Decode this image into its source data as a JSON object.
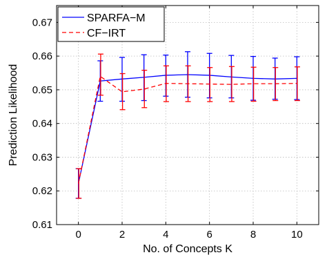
{
  "chart_data": {
    "type": "line",
    "title": "",
    "xlabel": "No. of Concepts K",
    "ylabel": "Prediction Likelihood",
    "xlim": [
      -1,
      11
    ],
    "ylim": [
      0.61,
      0.675
    ],
    "xticks": [
      0,
      2,
      4,
      6,
      8,
      10
    ],
    "yticks": [
      0.61,
      0.62,
      0.63,
      0.64,
      0.65,
      0.66,
      0.67
    ],
    "ytick_labels": [
      "0.61",
      "0.62",
      "0.63",
      "0.64",
      "0.65",
      "0.66",
      "0.67"
    ],
    "grid": true,
    "legend_position": "top-left",
    "x": [
      0,
      1,
      2,
      3,
      4,
      5,
      6,
      7,
      8,
      9,
      10
    ],
    "series": [
      {
        "name": "SPARFA−M",
        "color": "#0000ff",
        "line_style": "solid",
        "values": [
          0.6222,
          0.6526,
          0.6532,
          0.6537,
          0.6543,
          0.6545,
          0.6543,
          0.6538,
          0.6534,
          0.6532,
          0.6534
        ],
        "error_low": [
          0.6178,
          0.6466,
          0.6466,
          0.6468,
          0.6481,
          0.6478,
          0.6476,
          0.6476,
          0.6469,
          0.6472,
          0.6471
        ],
        "error_high": [
          0.6266,
          0.6586,
          0.6596,
          0.6604,
          0.6603,
          0.6613,
          0.6608,
          0.6602,
          0.6599,
          0.6594,
          0.6598
        ]
      },
      {
        "name": "CF−IRT",
        "color": "#ff0000",
        "line_style": "dashed",
        "values": [
          0.6222,
          0.654,
          0.6494,
          0.6502,
          0.6519,
          0.6518,
          0.6517,
          0.6516,
          0.6518,
          0.6518,
          0.6519
        ],
        "error_low": [
          0.6178,
          0.6484,
          0.6441,
          0.6447,
          0.6465,
          0.6465,
          0.6465,
          0.6465,
          0.6466,
          0.6468,
          0.6468
        ],
        "error_high": [
          0.6266,
          0.6606,
          0.6548,
          0.6558,
          0.6571,
          0.6571,
          0.6566,
          0.6569,
          0.6567,
          0.6566,
          0.6568
        ]
      }
    ]
  }
}
